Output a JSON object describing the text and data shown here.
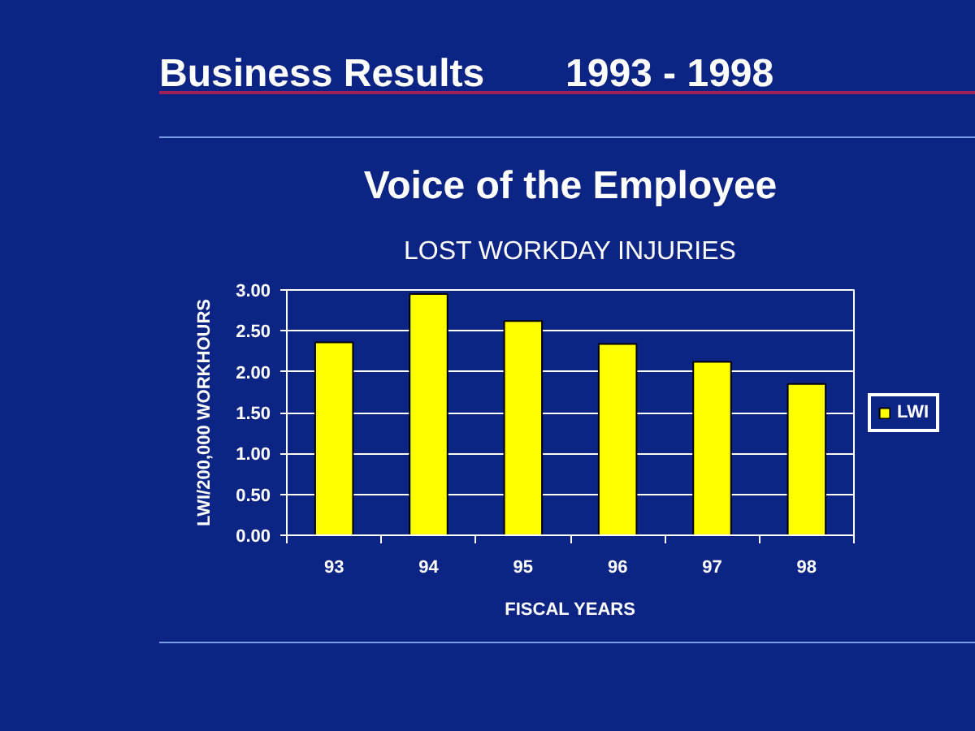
{
  "chart_data": {
    "type": "bar",
    "title": "Voice of the Employee",
    "subtitle": "LOST WORKDAY INJURIES",
    "annotations": [
      "Business Results",
      "1993 - 1998"
    ],
    "xlabel": "FISCAL YEARS",
    "ylabel": "LWI/200,000 WORKHOURS",
    "categories": [
      "93",
      "94",
      "95",
      "96",
      "97",
      "98"
    ],
    "series": [
      {
        "name": "LWI",
        "color": "#ffff00",
        "values": [
          2.36,
          2.95,
          2.62,
          2.34,
          2.12,
          1.85
        ]
      }
    ],
    "ylim": [
      0,
      3
    ],
    "yticks": [
      {
        "value": 0,
        "label": "0.00"
      },
      {
        "value": 0.5,
        "label": "0.50"
      },
      {
        "value": 1,
        "label": "1.00"
      },
      {
        "value": 1.5,
        "label": "1.50"
      },
      {
        "value": 2,
        "label": "2.00"
      },
      {
        "value": 2.5,
        "label": "2.50"
      },
      {
        "value": 3,
        "label": "3.00"
      }
    ],
    "grid": "y",
    "legend": "right"
  }
}
